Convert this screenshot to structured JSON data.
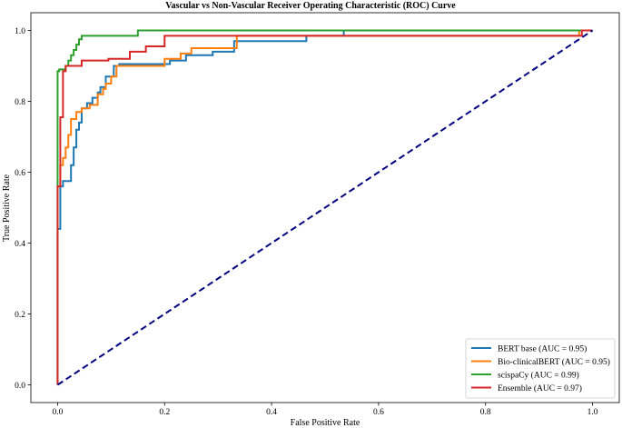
{
  "chart_data": {
    "type": "line",
    "title": "Vascular vs Non-Vascular Receiver Operating Characteristic (ROC) Curve",
    "xlabel": "False Positive Rate",
    "ylabel": "True Positive Rate",
    "xlim": [
      -0.05,
      1.05
    ],
    "ylim": [
      -0.05,
      1.05
    ],
    "xticks": [
      0.0,
      0.2,
      0.4,
      0.6,
      0.8,
      1.0
    ],
    "yticks": [
      0.0,
      0.2,
      0.4,
      0.6,
      0.8,
      1.0
    ],
    "xtick_labels": [
      "0.0",
      "0.2",
      "0.4",
      "0.6",
      "0.8",
      "1.0"
    ],
    "ytick_labels": [
      "0.0",
      "0.2",
      "0.4",
      "0.6",
      "0.8",
      "1.0"
    ],
    "legend_position": "bottom-right",
    "grid": false,
    "series": [
      {
        "name": "BERT base",
        "legend_label": "BERT base (AUC = 0.95)",
        "color": "#1f77b4",
        "x": [
          0,
          0,
          0.005,
          0.005,
          0.01,
          0.01,
          0.025,
          0.025,
          0.03,
          0.03,
          0.035,
          0.035,
          0.04,
          0.04,
          0.045,
          0.045,
          0.055,
          0.055,
          0.065,
          0.065,
          0.075,
          0.075,
          0.08,
          0.08,
          0.09,
          0.09,
          0.105,
          0.105,
          0.115,
          0.115,
          0.21,
          0.21,
          0.24,
          0.24,
          0.29,
          0.29,
          0.33,
          0.33,
          0.465,
          0.465,
          0.535,
          0.535,
          1.0
        ],
        "y": [
          0,
          0.44,
          0.44,
          0.56,
          0.56,
          0.575,
          0.575,
          0.62,
          0.62,
          0.67,
          0.67,
          0.72,
          0.72,
          0.74,
          0.74,
          0.78,
          0.78,
          0.795,
          0.795,
          0.81,
          0.81,
          0.825,
          0.825,
          0.84,
          0.84,
          0.87,
          0.87,
          0.9,
          0.9,
          0.905,
          0.905,
          0.915,
          0.915,
          0.93,
          0.93,
          0.94,
          0.94,
          0.97,
          0.97,
          0.985,
          0.985,
          1.0,
          1.0
        ]
      },
      {
        "name": "Bio-clinicalBERT",
        "legend_label": "Bio-clinicalBERT (AUC = 0.95)",
        "color": "#ff7f0e",
        "x": [
          0,
          0,
          0.005,
          0.005,
          0.01,
          0.01,
          0.015,
          0.015,
          0.02,
          0.02,
          0.025,
          0.025,
          0.035,
          0.035,
          0.045,
          0.045,
          0.06,
          0.06,
          0.075,
          0.075,
          0.085,
          0.085,
          0.09,
          0.09,
          0.1,
          0.1,
          0.11,
          0.11,
          0.2,
          0.2,
          0.23,
          0.23,
          0.25,
          0.25,
          0.335,
          0.335,
          0.975,
          0.975,
          1.0
        ],
        "y": [
          0,
          0.56,
          0.56,
          0.62,
          0.62,
          0.64,
          0.64,
          0.67,
          0.67,
          0.705,
          0.705,
          0.75,
          0.75,
          0.77,
          0.77,
          0.78,
          0.78,
          0.79,
          0.79,
          0.82,
          0.82,
          0.835,
          0.835,
          0.85,
          0.85,
          0.87,
          0.87,
          0.9,
          0.9,
          0.92,
          0.92,
          0.935,
          0.935,
          0.95,
          0.95,
          0.985,
          0.985,
          1.0,
          1.0
        ]
      },
      {
        "name": "scispaCy",
        "legend_label": "scispaCy (AUC = 0.99)",
        "color": "#2ca02c",
        "x": [
          0,
          0,
          0.003,
          0.003,
          0.015,
          0.015,
          0.02,
          0.02,
          0.025,
          0.025,
          0.03,
          0.03,
          0.035,
          0.035,
          0.04,
          0.04,
          0.045,
          0.045,
          0.15,
          0.15,
          1.0
        ],
        "y": [
          0,
          0.885,
          0.885,
          0.89,
          0.89,
          0.9,
          0.9,
          0.915,
          0.915,
          0.93,
          0.93,
          0.945,
          0.945,
          0.96,
          0.96,
          0.975,
          0.975,
          0.985,
          0.985,
          1.0,
          1.0
        ]
      },
      {
        "name": "Ensemble",
        "legend_label": "Ensemble (AUC = 0.97)",
        "color": "#d62728",
        "x": [
          0,
          0,
          0.005,
          0.005,
          0.01,
          0.01,
          0.015,
          0.015,
          0.045,
          0.045,
          0.095,
          0.095,
          0.135,
          0.135,
          0.165,
          0.165,
          0.2,
          0.2,
          0.98,
          0.98,
          1.0
        ],
        "y": [
          0,
          0.56,
          0.56,
          0.755,
          0.755,
          0.885,
          0.885,
          0.9,
          0.9,
          0.915,
          0.915,
          0.92,
          0.92,
          0.94,
          0.94,
          0.955,
          0.955,
          0.985,
          0.985,
          1.0,
          1.0
        ]
      }
    ],
    "reference_line": {
      "x": [
        0,
        1
      ],
      "y": [
        0,
        1
      ],
      "color": "#000080",
      "style": "dashed"
    }
  }
}
